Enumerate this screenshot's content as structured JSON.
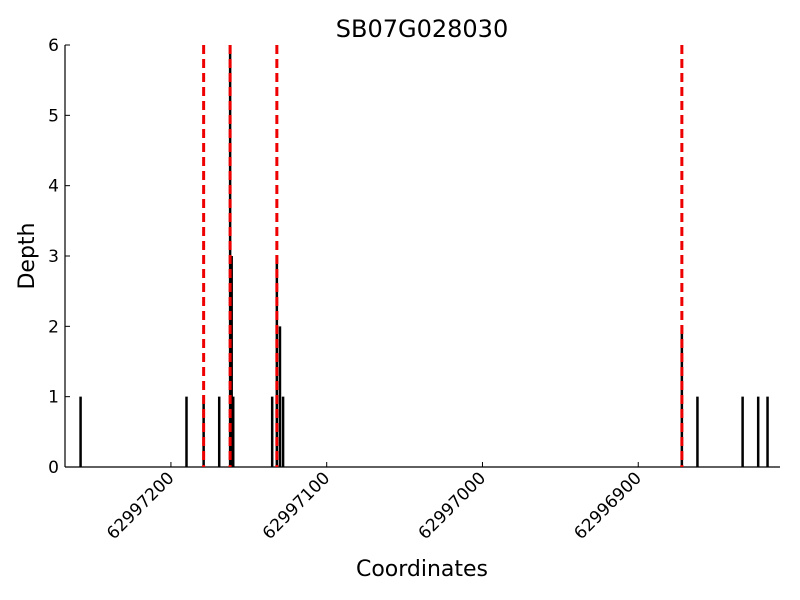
{
  "chart_data": {
    "type": "bar",
    "title": "SB07G028030",
    "x_label": "Coordinates",
    "y_label": "Depth",
    "x": [
      62997258,
      62997190,
      62997179,
      62997169,
      62997162,
      62997161,
      62997160,
      62997135,
      62997132,
      62997130,
      62997128,
      62996872,
      62996862,
      62996833,
      62996823,
      62996817
    ],
    "values": [
      1,
      1,
      1,
      1,
      6,
      3,
      1,
      1,
      3,
      2,
      1,
      2,
      1,
      1,
      1,
      1
    ],
    "color": "#000000",
    "markers": {
      "x": [
        62997179,
        62997162,
        62997132,
        62996872
      ],
      "color": "#ee0000"
    },
    "xlim": [
      62997268,
      62996809
    ],
    "xticks": [
      62997200,
      62997100,
      62997000,
      62996900
    ],
    "ylim": [
      0,
      6
    ],
    "yticks": [
      0,
      1,
      2,
      3,
      4,
      5,
      6
    ]
  }
}
